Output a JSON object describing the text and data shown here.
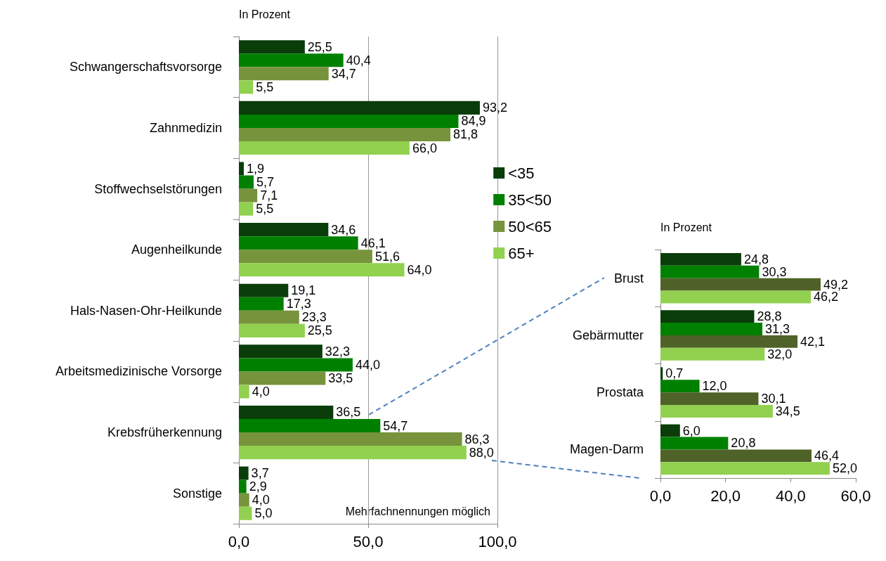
{
  "chart_data": [
    {
      "type": "bar",
      "orientation": "horizontal",
      "categories": [
        "Schwangerschaftsvorsorge",
        "Zahnmedizin",
        "Stoffwechselstörungen",
        "Augenheilkunde",
        "Hals-Nasen-Ohr-Heilkunde",
        "Arbeitsmedizinische Vorsorge",
        "Krebsfrüherkennung",
        "Sonstige"
      ],
      "series": [
        {
          "name": "<35",
          "color": "#0a3d0a",
          "values": [
            25.5,
            93.2,
            1.9,
            34.6,
            19.1,
            32.3,
            36.5,
            3.7
          ],
          "value_labels": [
            "25,5",
            "93,2",
            "1,9",
            "34,6",
            "19,1",
            "32,3",
            "36,5",
            "3,7"
          ]
        },
        {
          "name": "35<50",
          "color": "#008000",
          "values": [
            40.4,
            84.9,
            5.7,
            46.1,
            17.3,
            44.0,
            54.7,
            2.9
          ],
          "value_labels": [
            "40,4",
            "84,9",
            "5,7",
            "46,1",
            "17,3",
            "44,0",
            "54,7",
            "2,9"
          ]
        },
        {
          "name": "50<65",
          "color": "#77933c",
          "values": [
            34.7,
            81.8,
            7.1,
            51.6,
            23.3,
            33.5,
            86.3,
            4.0
          ],
          "value_labels": [
            "34,7",
            "81,8",
            "7,1",
            "51,6",
            "23,3",
            "33,5",
            "86,3",
            "4,0"
          ]
        },
        {
          "name": "65+",
          "color": "#92d050",
          "values": [
            5.5,
            66.0,
            5.5,
            64.0,
            25.5,
            4.0,
            88.0,
            5.0
          ],
          "value_labels": [
            "5,5",
            "66,0",
            "5,5",
            "64,0",
            "25,5",
            "4,0",
            "88,0",
            "5,0"
          ]
        }
      ],
      "xlim": [
        0,
        100
      ],
      "xticks": [
        {
          "value": 0,
          "label": "0,0"
        },
        {
          "value": 50,
          "label": "50,0"
        },
        {
          "value": 100,
          "label": "100,0"
        }
      ],
      "grid": "x",
      "legend": "top right",
      "annotations": [
        "In Prozent",
        "Mehrfachnennungen möglich"
      ]
    },
    {
      "type": "bar",
      "orientation": "horizontal",
      "categories": [
        "Brust",
        "Gebärmutter",
        "Prostata",
        "Magen-Darm"
      ],
      "series": [
        {
          "color": "#0a3d0a",
          "values": [
            24.8,
            28.8,
            0.7,
            6.0
          ],
          "value_labels": [
            "24,8",
            "28,8",
            "0,7",
            "6,0"
          ]
        },
        {
          "color": "#008000",
          "values": [
            30.3,
            31.3,
            12.0,
            20.8
          ],
          "value_labels": [
            "30,3",
            "31,3",
            "12,0",
            "20,8"
          ]
        },
        {
          "color": "#4f6228",
          "values": [
            49.2,
            42.1,
            30.1,
            46.4
          ],
          "value_labels": [
            "49,2",
            "42,1",
            "30,1",
            "46,4"
          ]
        },
        {
          "color": "#92d050",
          "values": [
            46.2,
            32.0,
            34.5,
            52.0
          ],
          "value_labels": [
            "46,2",
            "32,0",
            "34,5",
            "52,0"
          ]
        }
      ],
      "xlim": [
        0,
        60
      ],
      "xticks": [
        {
          "value": 0,
          "label": "0,0"
        },
        {
          "value": 20,
          "label": "20,0"
        },
        {
          "value": 40,
          "label": "40,0"
        },
        {
          "value": 60,
          "label": "60,0"
        }
      ],
      "annotations": [
        "In Prozent"
      ]
    }
  ]
}
